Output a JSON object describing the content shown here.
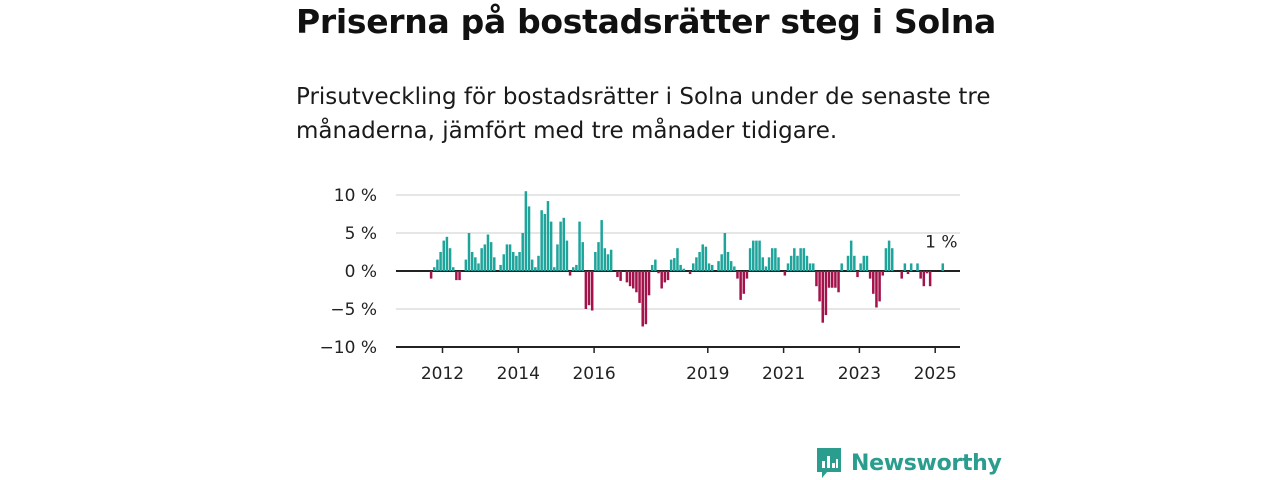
{
  "title": "Priserna på bostadsrätter steg i Solna",
  "subtitle": "Prisutveckling för bostadsrätter i Solna under de senaste tre månaderna, jämfört med tre månader tidigare.",
  "brand": {
    "name": "Newsworthy",
    "icon": "bar-chart-speech-bubble-icon"
  },
  "colors": {
    "positive": "#1fa49c",
    "negative": "#a3124a",
    "grid": "#dddddd",
    "axis": "#222222",
    "brand": "#2a9d8f"
  },
  "chart_data": {
    "type": "bar",
    "unit": "%",
    "ylim": [
      -10,
      10
    ],
    "yticks": [
      10,
      5,
      0,
      -5,
      -10
    ],
    "ytick_labels": [
      "10 %",
      "5 %",
      "0 %",
      "−5 %",
      "−10 %"
    ],
    "xticks": [
      {
        "year": 2012,
        "label": "2012"
      },
      {
        "year": 2014,
        "label": "2014"
      },
      {
        "year": 2016,
        "label": "2016"
      },
      {
        "year": 2019,
        "label": "2019"
      },
      {
        "year": 2021,
        "label": "2021"
      },
      {
        "year": 2023,
        "label": "2023"
      },
      {
        "year": 2025,
        "label": "2025"
      }
    ],
    "start": "2011-01",
    "series": [
      {
        "values": [
          0,
          0,
          0,
          0,
          0,
          0,
          0,
          0,
          -1,
          0.5,
          1.5,
          2.5,
          4,
          4.5,
          3,
          0.5,
          -1.2,
          -1.2,
          0,
          1.5,
          5,
          2.5,
          1.8,
          1,
          3,
          3.5,
          4.8,
          3.8,
          1.8,
          0,
          0.8,
          2.2,
          3.5,
          3.5,
          2.5,
          2,
          2.5,
          5,
          10.5,
          8.5,
          1.5,
          0.5,
          2,
          8,
          7.5,
          9.2,
          6.5,
          0.5,
          3.5,
          6.5,
          7,
          4,
          -0.6,
          0.5,
          0.8,
          6.5,
          3.8,
          -5,
          -4.5,
          -5.2,
          2.5,
          3.8,
          6.7,
          3,
          2.2,
          2.8,
          0,
          -0.8,
          -1.3,
          0,
          -1.5,
          -2,
          -2.3,
          -2.8,
          -4.2,
          -7.3,
          -7,
          -3.2,
          0.8,
          1.5,
          -0.3,
          -2.3,
          -1.5,
          -1.2,
          1.5,
          1.7,
          3,
          0.8,
          0.3,
          0,
          -0.4,
          1,
          1.8,
          2.5,
          3.5,
          3.2,
          1,
          0.8,
          0,
          1.3,
          2.2,
          5,
          2.5,
          1.3,
          0.6,
          -1,
          -3.8,
          -3,
          -1,
          3,
          4,
          4,
          4,
          1.8,
          0.6,
          1.8,
          3,
          3,
          1.8,
          0,
          -0.6,
          1,
          2,
          3,
          2,
          3,
          3,
          2,
          1,
          1,
          -2,
          -4,
          -6.8,
          -5.8,
          -2.2,
          -2.2,
          -2.2,
          -2.8,
          1,
          0,
          2,
          4,
          2,
          -0.8,
          1,
          2,
          2,
          -1,
          -3,
          -4.8,
          -4,
          -0.6,
          3,
          4,
          3,
          0,
          0,
          -1,
          1,
          -0.4,
          1,
          0,
          1,
          -1,
          -2,
          -0.3,
          -2,
          0,
          0,
          0,
          1
        ],
        "end_label": "1 %"
      }
    ]
  }
}
